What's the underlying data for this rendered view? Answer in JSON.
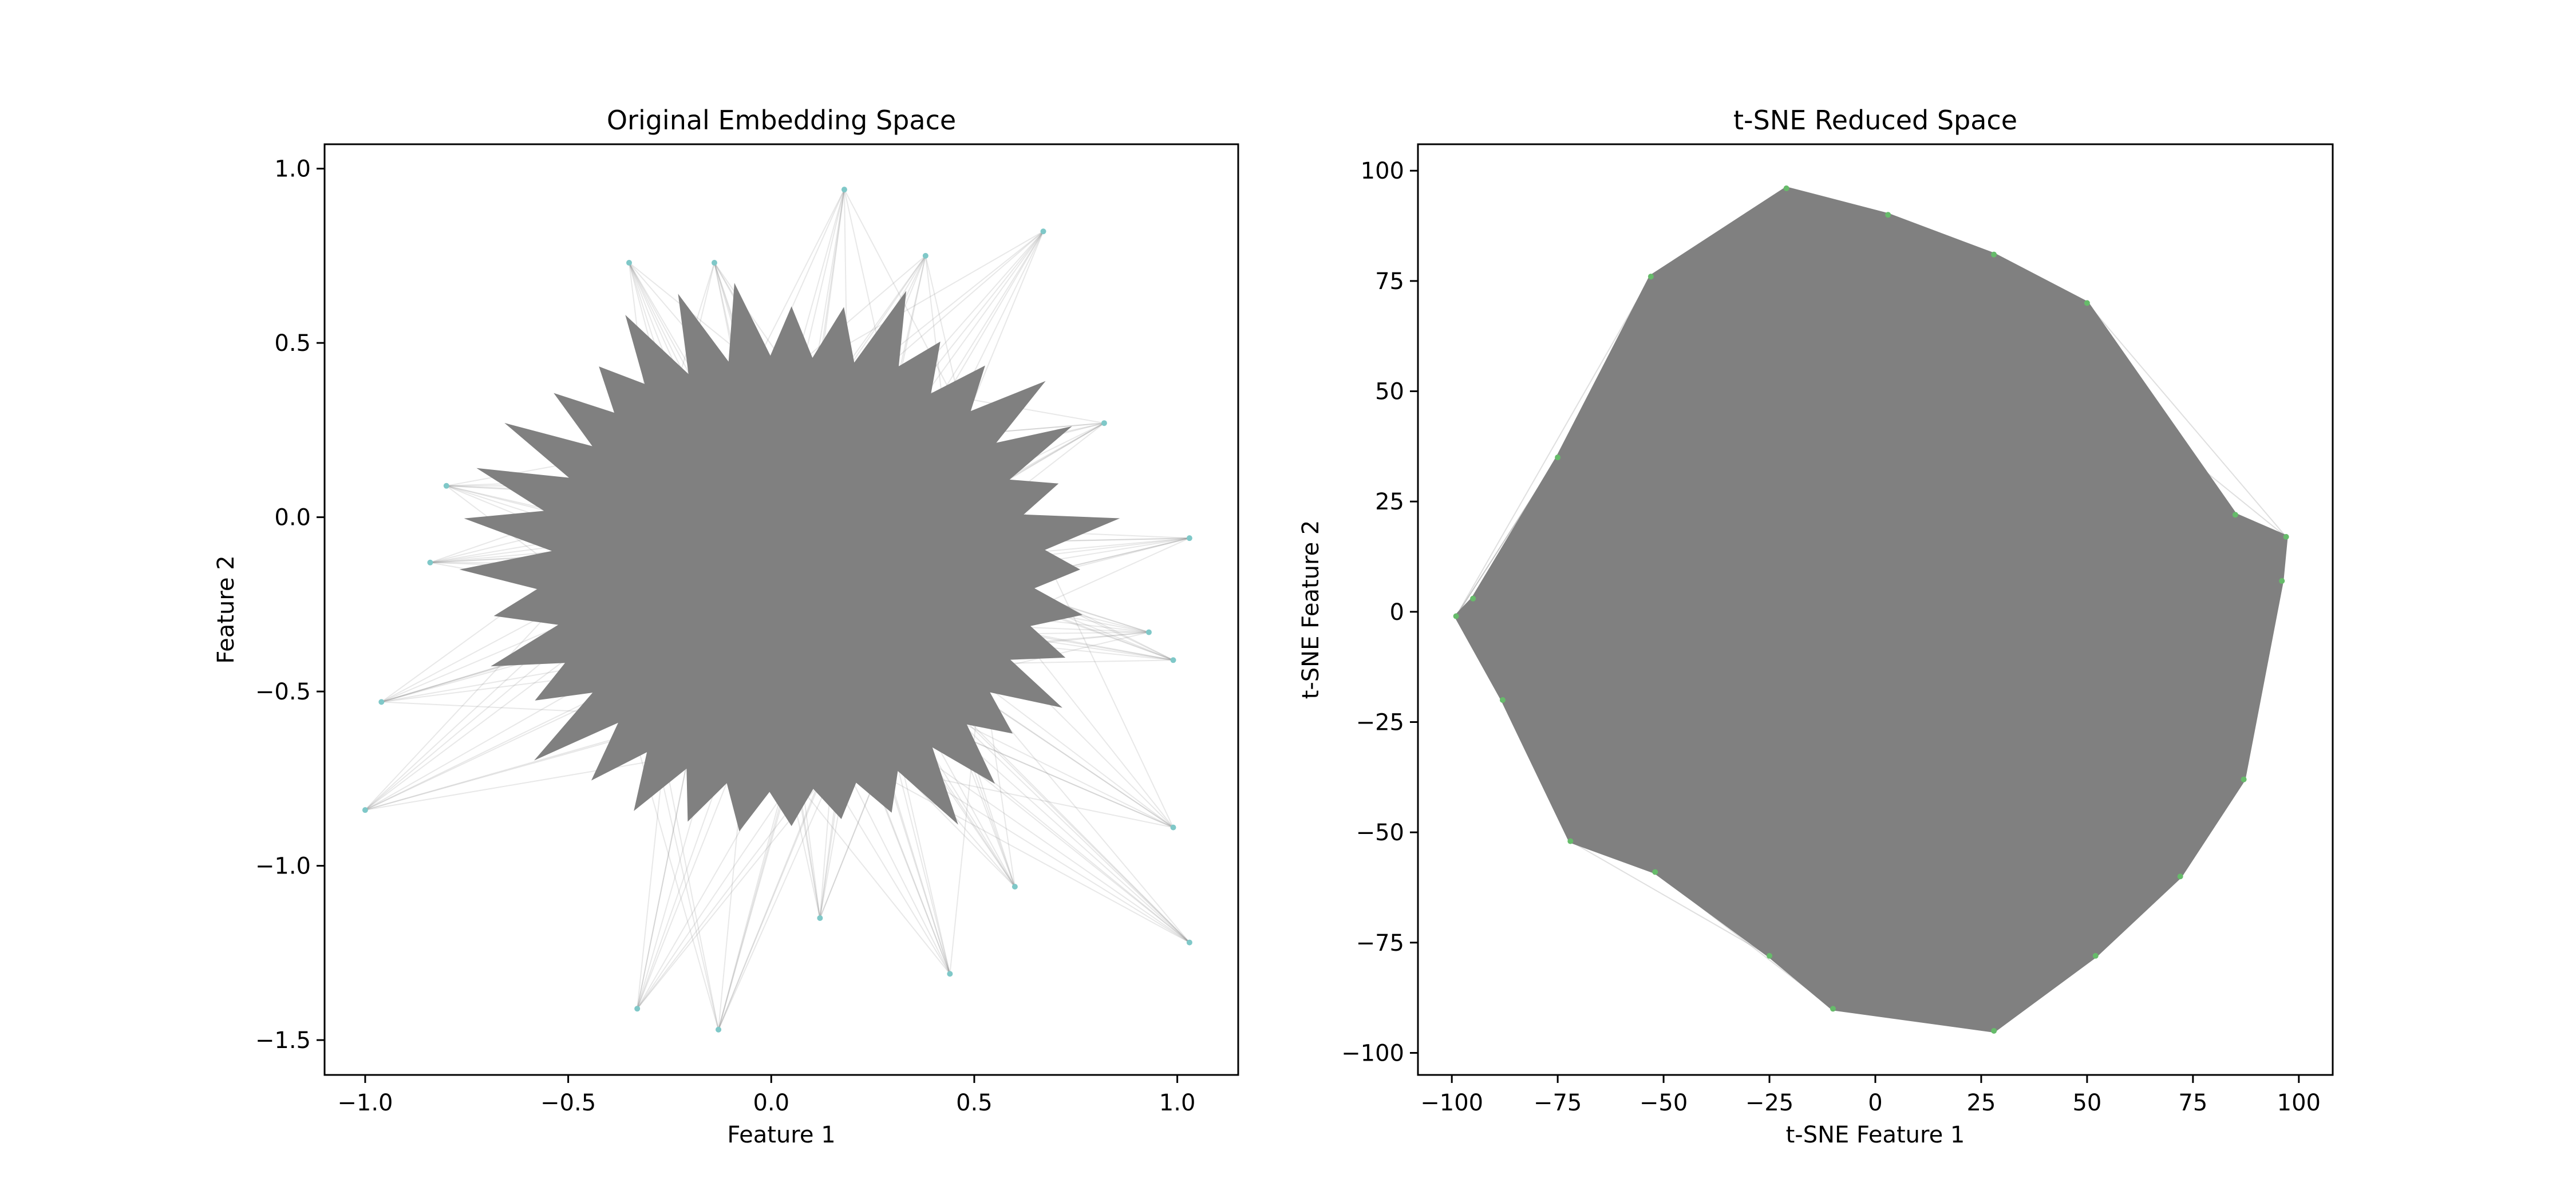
{
  "chart_data": [
    {
      "type": "scatter",
      "title": "Original Embedding Space",
      "xlabel": "Feature 1",
      "ylabel": "Feature 2",
      "xlim": [
        -1.1,
        1.15
      ],
      "ylim": [
        -1.6,
        1.07
      ],
      "xticks": [
        -1.0,
        -0.5,
        0.0,
        0.5,
        1.0
      ],
      "xtick_labels": [
        "−1.0",
        "−0.5",
        "0.0",
        "0.5",
        "1.0"
      ],
      "yticks": [
        -1.5,
        -1.0,
        -0.5,
        0.0,
        0.5,
        1.0
      ],
      "ytick_labels": [
        "−1.5",
        "−1.0",
        "−0.5",
        "0.0",
        "0.5",
        "1.0"
      ],
      "grid": false,
      "edge_color": "#808080",
      "point_color": "#7fc8c8",
      "outliers": [
        [
          -1.0,
          -0.84
        ],
        [
          -0.96,
          -0.53
        ],
        [
          -0.33,
          -1.41
        ],
        [
          -0.13,
          -1.47
        ],
        [
          0.44,
          -1.31
        ],
        [
          1.03,
          -0.06
        ],
        [
          1.03,
          -1.22
        ],
        [
          0.99,
          -0.89
        ],
        [
          0.99,
          -0.41
        ],
        [
          0.18,
          0.94
        ],
        [
          0.67,
          0.82
        ],
        [
          0.38,
          0.75
        ],
        [
          -0.35,
          0.73
        ],
        [
          -0.14,
          0.73
        ],
        [
          -0.8,
          0.09
        ],
        [
          -0.84,
          -0.13
        ],
        [
          0.82,
          0.27
        ],
        [
          0.93,
          -0.33
        ],
        [
          0.12,
          -1.15
        ],
        [
          0.6,
          -1.06
        ]
      ],
      "cluster": {
        "cx": 0.05,
        "cy": -0.15,
        "r": 0.72
      }
    },
    {
      "type": "scatter",
      "title": "t-SNE Reduced Space",
      "xlabel": "t-SNE Feature 1",
      "ylabel": "t-SNE Feature 2",
      "xlim": [
        -108,
        108
      ],
      "ylim": [
        -105,
        106
      ],
      "xticks": [
        -100,
        -75,
        -50,
        -25,
        0,
        25,
        50,
        75,
        100
      ],
      "xtick_labels": [
        "−100",
        "−75",
        "−50",
        "−25",
        "0",
        "25",
        "50",
        "75",
        "100"
      ],
      "yticks": [
        -100,
        -75,
        -50,
        -25,
        0,
        25,
        50,
        75,
        100
      ],
      "ytick_labels": [
        "−100",
        "−75",
        "−50",
        "−25",
        "0",
        "25",
        "50",
        "75",
        "100"
      ],
      "grid": false,
      "edge_color": "#808080",
      "point_color": "#66bb6a",
      "boundary": [
        [
          -21,
          96
        ],
        [
          3,
          90
        ],
        [
          28,
          81
        ],
        [
          50,
          70
        ],
        [
          85,
          22
        ],
        [
          97,
          17
        ],
        [
          96,
          7
        ],
        [
          87,
          -38
        ],
        [
          72,
          -60
        ],
        [
          52,
          -78
        ],
        [
          28,
          -95
        ],
        [
          -10,
          -90
        ],
        [
          -25,
          -78
        ],
        [
          -52,
          -59
        ],
        [
          -72,
          -52
        ],
        [
          -88,
          -20
        ],
        [
          -99,
          -1
        ],
        [
          -95,
          3
        ],
        [
          -75,
          35
        ],
        [
          -53,
          76
        ]
      ]
    }
  ]
}
